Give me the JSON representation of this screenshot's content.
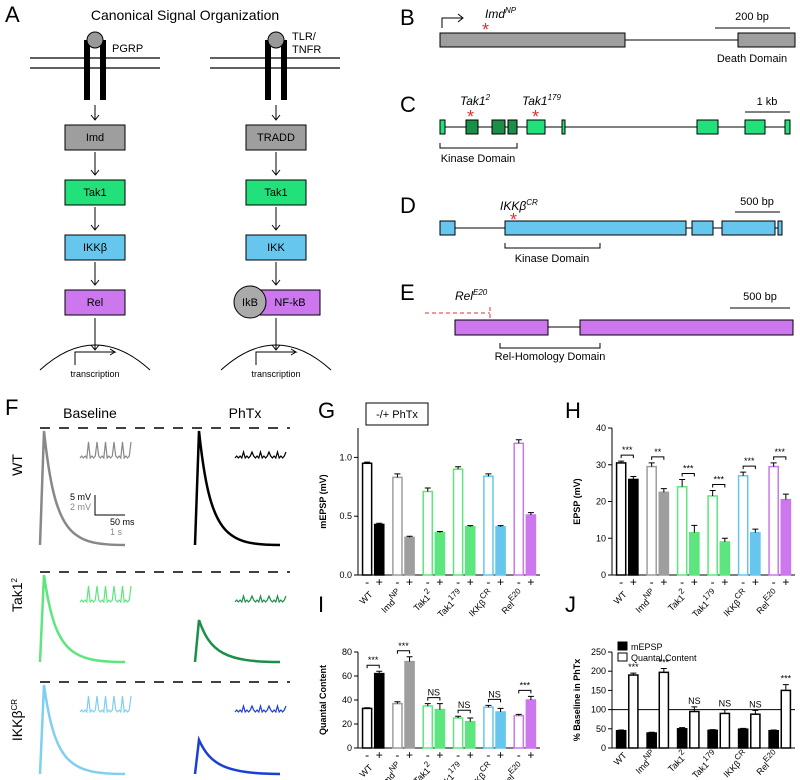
{
  "panel_a": {
    "letter": "A",
    "title": "Canonical Signal Organization",
    "left": {
      "receptor": "PGRP",
      "nodes": [
        "Imd",
        "Tak1",
        "IKKβ",
        "Rel"
      ],
      "output": "transcription"
    },
    "right": {
      "receptor": [
        "TLR/",
        "TNFR"
      ],
      "nodes": [
        "TRADD",
        "Tak1",
        "IKK"
      ],
      "inhibitor": "IkB",
      "factor": "NF-kB",
      "output": "transcription"
    }
  },
  "gene_maps": [
    {
      "letter": "B",
      "alleles": [
        {
          "name": "Imd",
          "sup": "NP"
        }
      ],
      "scale": "200 bp",
      "domain": "Death Domain"
    },
    {
      "letter": "C",
      "alleles": [
        {
          "name": "Tak1",
          "sup": "2"
        },
        {
          "name": "Tak1",
          "sup": "179"
        }
      ],
      "scale": "1 kb",
      "domain": "Kinase Domain"
    },
    {
      "letter": "D",
      "alleles": [
        {
          "name": "IKKβ",
          "sup": "CR"
        }
      ],
      "scale": "500 bp",
      "domain": "Kinase Domain"
    },
    {
      "letter": "E",
      "alleles": [
        {
          "name": "Rel",
          "sup": "E20"
        }
      ],
      "scale": "500 bp",
      "domain": "Rel-Homology Domain"
    }
  ],
  "panel_f": {
    "letter": "F",
    "columns": [
      "Baseline",
      "PhTx"
    ],
    "rows": [
      {
        "name": "WT"
      },
      {
        "name": "Tak1",
        "sup": "2"
      },
      {
        "name": "IKKβ",
        "sup": "CR"
      }
    ],
    "scale": [
      "5 mV",
      "2 mV",
      "50 ms",
      "1 s"
    ]
  },
  "chart_data": [
    {
      "type": "bar",
      "panel": "G",
      "inset": "-/+ PhTx",
      "y_label": "mEPSP (mV)",
      "ylim": [
        0,
        1.25
      ],
      "yticks": [
        {
          "value": 0,
          "label": "0.0"
        },
        {
          "value": 0.5,
          "label": "0.5"
        },
        {
          "value": 1,
          "label": "1.0"
        }
      ],
      "categories": [
        {
          "name": "WT"
        },
        {
          "name": "Imd",
          "sup": "NP"
        },
        {
          "name": "Tak1",
          "sup": "2"
        },
        {
          "name": "Tak1",
          "sup": "179"
        },
        {
          "name": "IKKβ",
          "sup": "CR"
        },
        {
          "name": "Rel",
          "sup": "E20"
        }
      ],
      "colors": [
        "#000000",
        "#9e9e9e",
        "#5ee67e",
        "#5ee67e",
        "#66c6ee",
        "#cc77ee"
      ],
      "series": [
        {
          "name": "-",
          "fill": "outline",
          "values": [
            0.95,
            0.83,
            0.71,
            0.9,
            0.84,
            1.12
          ],
          "errors": [
            0.01,
            0.03,
            0.03,
            0.02,
            0.02,
            0.03
          ]
        },
        {
          "name": "+",
          "fill": "solid",
          "values": [
            0.43,
            0.32,
            0.36,
            0.41,
            0.41,
            0.51
          ],
          "errors": [
            0.01,
            0.01,
            0.01,
            0.01,
            0.01,
            0.02
          ]
        }
      ]
    },
    {
      "type": "bar",
      "panel": "H",
      "y_label": "EPSP (mV)",
      "ylim": [
        0,
        40
      ],
      "yticks": [
        0,
        10,
        20,
        30,
        40
      ],
      "categories": [
        {
          "name": "WT"
        },
        {
          "name": "Imd",
          "sup": "NP"
        },
        {
          "name": "Tak1",
          "sup": "2"
        },
        {
          "name": "Tak1",
          "sup": "179"
        },
        {
          "name": "IKKβ",
          "sup": "CR"
        },
        {
          "name": "Rel",
          "sup": "E20"
        }
      ],
      "colors": [
        "#000000",
        "#9e9e9e",
        "#5ee67e",
        "#5ee67e",
        "#66c6ee",
        "#cc77ee"
      ],
      "series": [
        {
          "name": "-",
          "fill": "outline",
          "values": [
            30.5,
            29.5,
            24,
            21.5,
            27,
            29.5
          ],
          "errors": [
            0.5,
            1,
            2,
            1.5,
            1,
            1
          ]
        },
        {
          "name": "+",
          "fill": "solid",
          "values": [
            26,
            22.5,
            11.5,
            9,
            11.5,
            20.5
          ],
          "errors": [
            0.8,
            1,
            2,
            1,
            1,
            1.5
          ]
        }
      ],
      "significance": [
        "***",
        "**",
        "***",
        "***",
        "***",
        "***"
      ],
      "significance_style": "bracket"
    },
    {
      "type": "bar",
      "panel": "I",
      "y_label": "Quantal Content",
      "ylim": [
        0,
        80
      ],
      "yticks": [
        0,
        20,
        40,
        60,
        80
      ],
      "categories": [
        {
          "name": "WT"
        },
        {
          "name": "Imd",
          "sup": "NP"
        },
        {
          "name": "Tak1",
          "sup": "2"
        },
        {
          "name": "Tak1",
          "sup": "179"
        },
        {
          "name": "IKKβ",
          "sup": "CR"
        },
        {
          "name": "Rel",
          "sup": "E20"
        }
      ],
      "colors": [
        "#000000",
        "#9e9e9e",
        "#5ee67e",
        "#5ee67e",
        "#66c6ee",
        "#cc77ee"
      ],
      "series": [
        {
          "name": "-",
          "fill": "outline",
          "values": [
            33,
            37,
            35,
            25,
            34,
            27
          ],
          "errors": [
            0.5,
            1.5,
            2,
            1.5,
            1.5,
            1
          ]
        },
        {
          "name": "+",
          "fill": "solid",
          "values": [
            62,
            72,
            32,
            22,
            30,
            40
          ],
          "errors": [
            2,
            4,
            5,
            3,
            3,
            3
          ]
        }
      ],
      "significance": [
        "***",
        "***",
        "NS",
        "NS",
        "NS",
        "***"
      ],
      "significance_style": "bracket"
    },
    {
      "type": "bar",
      "panel": "J",
      "y_label": "% Baseline in PhTx",
      "ylim": [
        0,
        250
      ],
      "yticks": [
        0,
        50,
        100,
        150,
        200,
        250
      ],
      "refline": 100,
      "legend": "upper left",
      "categories": [
        {
          "name": "WT"
        },
        {
          "name": "Imd",
          "sup": "NP"
        },
        {
          "name": "Tak1",
          "sup": "2"
        },
        {
          "name": "Tak1",
          "sup": "179"
        },
        {
          "name": "IKKβ",
          "sup": "CR"
        },
        {
          "name": "Rel",
          "sup": "E20"
        }
      ],
      "series": [
        {
          "name": "mEPSP",
          "color": "#000000",
          "values": [
            45,
            39,
            50,
            46,
            49,
            45
          ],
          "errors": [
            2,
            2,
            3,
            2,
            2,
            2
          ]
        },
        {
          "name": "Quantal Content",
          "color": "#ffffff",
          "values": [
            190,
            197,
            95,
            90,
            88,
            150
          ],
          "errors": [
            5,
            10,
            12,
            10,
            10,
            15
          ]
        }
      ],
      "significance": [
        "***",
        "***",
        "NS",
        "NS",
        "NS",
        "***"
      ],
      "significance_style": "above"
    }
  ]
}
